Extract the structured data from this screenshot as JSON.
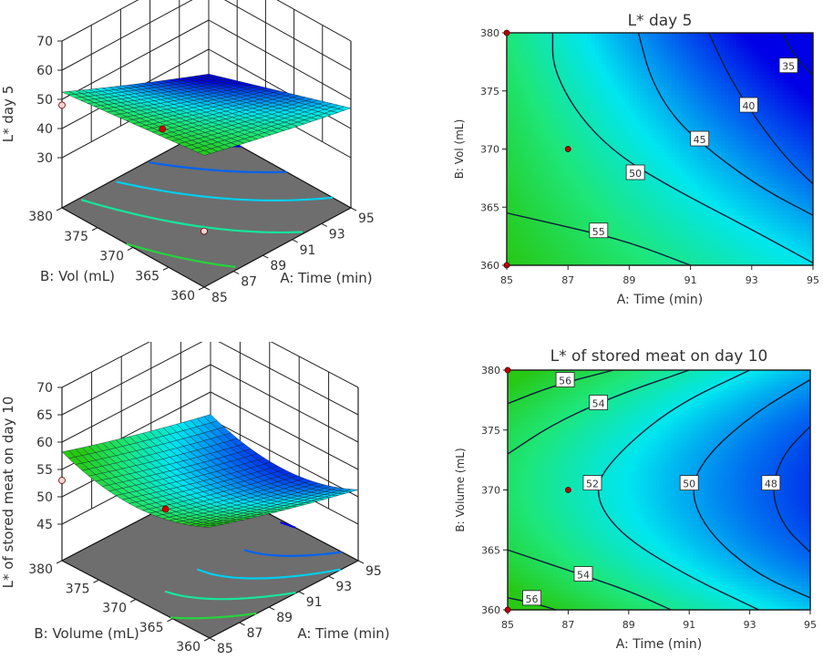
{
  "chart_data": [
    {
      "id": "surface-day5",
      "type": "surface3d",
      "title": "",
      "xlabel": "A: Time (min)",
      "ylabel": "B: Vol (mL)",
      "zlabel": "L* day 5",
      "x_ticks": [
        "85",
        "87",
        "89",
        "91",
        "93",
        "95"
      ],
      "y_ticks": [
        "360",
        "365",
        "370",
        "375",
        "380"
      ],
      "z_ticks": [
        "30",
        "40",
        "50",
        "60",
        "70"
      ],
      "xlim": [
        85,
        95
      ],
      "ylim": [
        360,
        380
      ],
      "zlim": [
        30,
        70
      ],
      "corner_values": {
        "A85_B360": 58,
        "A95_B360": 45,
        "A85_B380": 50,
        "A95_B380": 30
      },
      "design_points": [
        {
          "A": 87,
          "B": 370,
          "z": 48,
          "type": "center",
          "color": "#cc0000"
        },
        {
          "A": 85,
          "B": 380,
          "z": 48,
          "type": "below-surface",
          "color": "#f5d5d5"
        },
        {
          "A": 85,
          "B": 360,
          "z": 32,
          "type": "below-surface",
          "color": "#f5d5d5"
        }
      ],
      "floor_contours": [
        35,
        40,
        45,
        50,
        55
      ]
    },
    {
      "id": "contour-day5",
      "type": "contour",
      "title": "L* day 5",
      "xlabel": "A: Time (min)",
      "ylabel": "B: Vol (mL)",
      "x_ticks": [
        "85",
        "87",
        "89",
        "91",
        "93",
        "95"
      ],
      "y_ticks": [
        "360",
        "365",
        "370",
        "375",
        "380"
      ],
      "xlim": [
        85,
        95
      ],
      "ylim": [
        360,
        380
      ],
      "contour_levels": [
        {
          "level": "35",
          "points": [
            [
              94.0,
              380
            ],
            [
              94.4,
              378
            ],
            [
              95,
              376.3
            ]
          ],
          "label_at": [
            94.2,
            377.2
          ]
        },
        {
          "level": "40",
          "points": [
            [
              91.6,
              380
            ],
            [
              92.3,
              376
            ],
            [
              93.3,
              372
            ],
            [
              94.2,
              369
            ],
            [
              95,
              367
            ]
          ],
          "label_at": [
            92.9,
            373.8
          ]
        },
        {
          "level": "45",
          "points": [
            [
              89.3,
              380
            ],
            [
              89.7,
              376
            ],
            [
              90.5,
              372.5
            ],
            [
              91.8,
              369.5
            ],
            [
              93.4,
              366.5
            ],
            [
              95,
              364.3
            ]
          ],
          "label_at": [
            91.3,
            370.9
          ]
        },
        {
          "level": "50",
          "points": [
            [
              86.5,
              380
            ],
            [
              86.5,
              377
            ],
            [
              87.3,
              373
            ],
            [
              88.6,
              369.5
            ],
            [
              90.5,
              366.5
            ],
            [
              92.7,
              363.5
            ],
            [
              95,
              360.2
            ]
          ],
          "label_at": [
            89.2,
            368
          ]
        },
        {
          "level": "55",
          "points": [
            [
              85,
              364.5
            ],
            [
              87,
              363.3
            ],
            [
              89,
              362
            ],
            [
              91,
              360
            ]
          ],
          "label_at": [
            88,
            363
          ]
        }
      ],
      "design_points": [
        {
          "A": 87,
          "B": 370
        },
        {
          "A": 85,
          "B": 380
        },
        {
          "A": 85,
          "B": 360
        }
      ]
    },
    {
      "id": "surface-day10",
      "type": "surface3d",
      "title": "",
      "xlabel": "A: Time (min)",
      "ylabel": "B: Volume (mL)",
      "zlabel": "L* of stored meat on day 10",
      "x_ticks": [
        "85",
        "87",
        "89",
        "91",
        "93",
        "95"
      ],
      "y_ticks": [
        "360",
        "365",
        "370",
        "375",
        "380"
      ],
      "z_ticks": [
        "45",
        "50",
        "55",
        "60",
        "65",
        "70"
      ],
      "xlim": [
        85,
        95
      ],
      "ylim": [
        360,
        380
      ],
      "zlim": [
        45,
        70
      ],
      "corner_values": {
        "A85_B360": 57,
        "A95_B360": 49,
        "A85_B380": 57,
        "A95_B380": 49
      },
      "design_points": [
        {
          "A": 87,
          "B": 370,
          "z": 52,
          "type": "center",
          "color": "#cc0000"
        },
        {
          "A": 85,
          "B": 380,
          "z": 53,
          "type": "below-surface",
          "color": "#f5d5d5"
        }
      ],
      "floor_contours": [
        48,
        50,
        52,
        54,
        56
      ]
    },
    {
      "id": "contour-day10",
      "type": "contour",
      "title": "L* of stored meat on day 10",
      "xlabel": "A: Time (min)",
      "ylabel": "B: Volume (mL)",
      "x_ticks": [
        "85",
        "87",
        "89",
        "91",
        "93",
        "95"
      ],
      "y_ticks": [
        "360",
        "365",
        "370",
        "375",
        "380"
      ],
      "xlim": [
        85,
        95
      ],
      "ylim": [
        360,
        380
      ],
      "contour_levels": [
        {
          "level": "56",
          "points": [
            [
              85,
              377.2
            ],
            [
              86.5,
              378.7
            ],
            [
              88.5,
              380
            ]
          ],
          "label_at": [
            86.9,
            379.2
          ]
        },
        {
          "level": "54",
          "points": [
            [
              85,
              373
            ],
            [
              86.5,
              375.5
            ],
            [
              88.5,
              377.8
            ],
            [
              91,
              380
            ]
          ],
          "label_at": [
            88,
            377.3
          ]
        },
        {
          "level": "52",
          "points": [
            [
              93,
              380
            ],
            [
              90.5,
              377
            ],
            [
              88.6,
              373
            ],
            [
              87.8,
              370
            ],
            [
              88.6,
              366.5
            ],
            [
              90.8,
              363
            ],
            [
              93.3,
              360
            ]
          ],
          "label_at": [
            87.8,
            370.6
          ]
        },
        {
          "level": "50",
          "points": [
            [
              95,
              379.2
            ],
            [
              93.2,
              376.5
            ],
            [
              91.6,
              373
            ],
            [
              91,
              370
            ],
            [
              91.6,
              366.5
            ],
            [
              93.2,
              363
            ],
            [
              95,
              361
            ]
          ],
          "label_at": [
            91,
            370.6
          ]
        },
        {
          "level": "48",
          "points": [
            [
              95,
              375.3
            ],
            [
              94.1,
              373
            ],
            [
              93.7,
              370
            ],
            [
              94.1,
              367
            ],
            [
              95,
              364.8
            ]
          ],
          "label_at": [
            93.7,
            370.6
          ]
        },
        {
          "level": "54",
          "points": [
            [
              85,
              365
            ],
            [
              87,
              363.3
            ],
            [
              89,
              361.6
            ],
            [
              90.4,
              360
            ]
          ],
          "label_at": [
            87.5,
            363
          ]
        },
        {
          "level": "56",
          "points": [
            [
              85,
              361
            ],
            [
              85.8,
              360.6
            ],
            [
              86.6,
              360
            ]
          ],
          "label_at": [
            85.8,
            361
          ]
        }
      ],
      "design_points": [
        {
          "A": 87,
          "B": 370
        },
        {
          "A": 85,
          "B": 380
        },
        {
          "A": 85,
          "B": 360
        }
      ]
    }
  ]
}
